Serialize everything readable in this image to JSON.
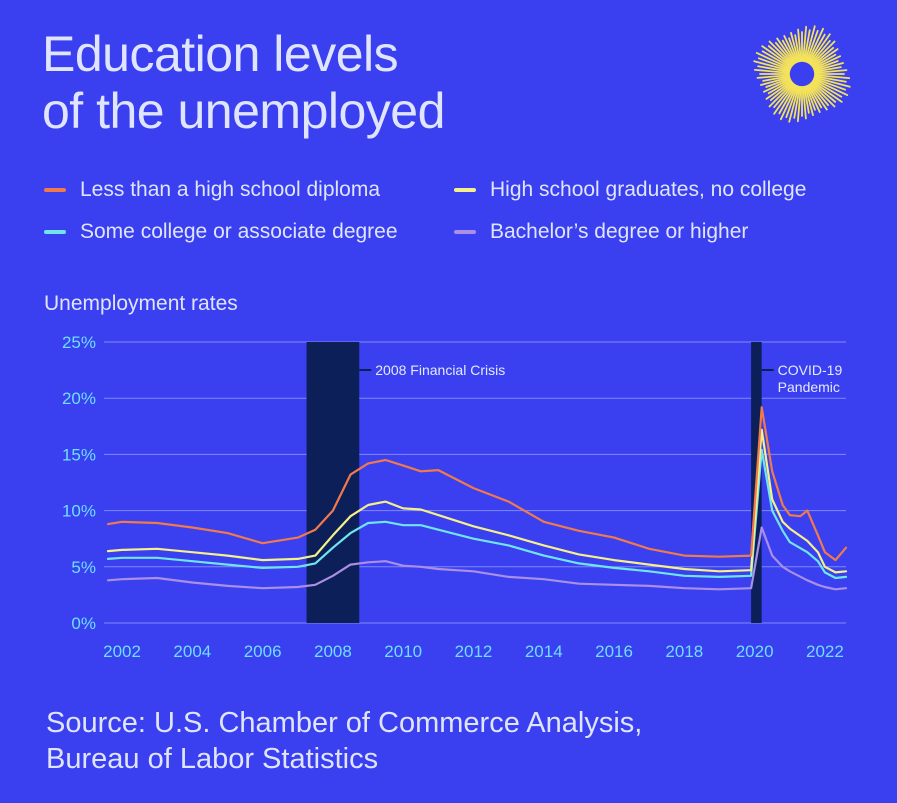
{
  "title_lines": [
    "Education levels",
    "of the unemployed"
  ],
  "legend": [
    {
      "label": "Less than a high school diploma",
      "color": "#f07a4b"
    },
    {
      "label": "High school graduates, no college",
      "color": "#f4f08a"
    },
    {
      "label": "Some college or associate degree",
      "color": "#6fe6ef"
    },
    {
      "label": "Bachelor’s degree or higher",
      "color": "#a98fe6"
    }
  ],
  "y_title": "Unemployment rates",
  "source_lines": [
    "Source: U.S. Chamber of Commerce Analysis,",
    "Bureau of Labor Statistics"
  ],
  "logo_icon": "sunburst-logo-icon",
  "chart_data": {
    "type": "line",
    "ylabel": "Unemployment rates",
    "ylim": [
      0,
      25
    ],
    "yticks": [
      0,
      5,
      10,
      15,
      20,
      25
    ],
    "ytick_labels": [
      "0%",
      "5%",
      "10%",
      "15%",
      "20%",
      "25%"
    ],
    "xlim": [
      2001.6,
      2022.6
    ],
    "xticks": [
      2002,
      2004,
      2006,
      2008,
      2010,
      2012,
      2014,
      2016,
      2018,
      2020,
      2022
    ],
    "xtick_labels": [
      "2002",
      "2004",
      "2006",
      "2008",
      "2010",
      "2012",
      "2014",
      "2016",
      "2018",
      "2020",
      "2022"
    ],
    "grid": "horizontal",
    "annotations": [
      {
        "label_lines": [
          "2008 Financial Crisis"
        ],
        "x_start": 2007.25,
        "x_end": 2008.75
      },
      {
        "label_lines": [
          "COVID-19",
          "Pandemic"
        ],
        "x_start": 2019.9,
        "x_end": 2020.2
      }
    ],
    "series": [
      {
        "name": "Less than a high school diploma",
        "color": "#f07a4b",
        "points": [
          [
            2001.6,
            8.8
          ],
          [
            2002,
            9.0
          ],
          [
            2003,
            8.9
          ],
          [
            2004,
            8.5
          ],
          [
            2005,
            8.0
          ],
          [
            2006,
            7.1
          ],
          [
            2007,
            7.6
          ],
          [
            2007.5,
            8.3
          ],
          [
            2008,
            10.0
          ],
          [
            2008.5,
            13.2
          ],
          [
            2009,
            14.2
          ],
          [
            2009.5,
            14.5
          ],
          [
            2010,
            14.0
          ],
          [
            2010.5,
            13.5
          ],
          [
            2011,
            13.6
          ],
          [
            2012,
            12.0
          ],
          [
            2013,
            10.8
          ],
          [
            2014,
            9.0
          ],
          [
            2015,
            8.2
          ],
          [
            2016,
            7.6
          ],
          [
            2017,
            6.6
          ],
          [
            2018,
            6.0
          ],
          [
            2019,
            5.9
          ],
          [
            2019.9,
            6.0
          ],
          [
            2020.2,
            19.2
          ],
          [
            2020.5,
            13.5
          ],
          [
            2020.8,
            10.5
          ],
          [
            2021,
            9.6
          ],
          [
            2021.3,
            9.5
          ],
          [
            2021.5,
            10.0
          ],
          [
            2021.8,
            7.8
          ],
          [
            2022,
            6.3
          ],
          [
            2022.3,
            5.6
          ],
          [
            2022.6,
            6.7
          ]
        ]
      },
      {
        "name": "High school graduates, no college",
        "color": "#f4f08a",
        "points": [
          [
            2001.6,
            6.4
          ],
          [
            2002,
            6.5
          ],
          [
            2003,
            6.6
          ],
          [
            2004,
            6.3
          ],
          [
            2005,
            6.0
          ],
          [
            2006,
            5.6
          ],
          [
            2007,
            5.7
          ],
          [
            2007.5,
            6.0
          ],
          [
            2008,
            7.8
          ],
          [
            2008.5,
            9.5
          ],
          [
            2009,
            10.5
          ],
          [
            2009.5,
            10.8
          ],
          [
            2010,
            10.2
          ],
          [
            2010.5,
            10.1
          ],
          [
            2011,
            9.6
          ],
          [
            2012,
            8.6
          ],
          [
            2013,
            7.8
          ],
          [
            2014,
            6.9
          ],
          [
            2015,
            6.1
          ],
          [
            2016,
            5.6
          ],
          [
            2017,
            5.2
          ],
          [
            2018,
            4.8
          ],
          [
            2019,
            4.6
          ],
          [
            2019.9,
            4.7
          ],
          [
            2020.2,
            17.2
          ],
          [
            2020.5,
            11.0
          ],
          [
            2020.8,
            9.0
          ],
          [
            2021,
            8.4
          ],
          [
            2021.5,
            7.3
          ],
          [
            2021.8,
            6.3
          ],
          [
            2022,
            5.0
          ],
          [
            2022.3,
            4.5
          ],
          [
            2022.6,
            4.6
          ]
        ]
      },
      {
        "name": "Some college or associate degree",
        "color": "#6fe6ef",
        "points": [
          [
            2001.6,
            5.7
          ],
          [
            2002,
            5.8
          ],
          [
            2003,
            5.8
          ],
          [
            2004,
            5.5
          ],
          [
            2005,
            5.2
          ],
          [
            2006,
            4.9
          ],
          [
            2007,
            5.0
          ],
          [
            2007.5,
            5.3
          ],
          [
            2008,
            6.7
          ],
          [
            2008.5,
            8.0
          ],
          [
            2009,
            8.9
          ],
          [
            2009.5,
            9.0
          ],
          [
            2010,
            8.7
          ],
          [
            2010.5,
            8.7
          ],
          [
            2011,
            8.3
          ],
          [
            2012,
            7.5
          ],
          [
            2013,
            6.9
          ],
          [
            2014,
            6.0
          ],
          [
            2015,
            5.3
          ],
          [
            2016,
            4.9
          ],
          [
            2017,
            4.6
          ],
          [
            2018,
            4.2
          ],
          [
            2019,
            4.1
          ],
          [
            2019.9,
            4.2
          ],
          [
            2020.2,
            15.4
          ],
          [
            2020.5,
            10.0
          ],
          [
            2020.8,
            8.2
          ],
          [
            2021,
            7.2
          ],
          [
            2021.5,
            6.3
          ],
          [
            2021.8,
            5.5
          ],
          [
            2022,
            4.5
          ],
          [
            2022.3,
            4.0
          ],
          [
            2022.6,
            4.1
          ]
        ]
      },
      {
        "name": "Bachelor’s degree or higher",
        "color": "#a98fe6",
        "points": [
          [
            2001.6,
            3.8
          ],
          [
            2002,
            3.9
          ],
          [
            2003,
            4.0
          ],
          [
            2004,
            3.6
          ],
          [
            2005,
            3.3
          ],
          [
            2006,
            3.1
          ],
          [
            2007,
            3.2
          ],
          [
            2007.5,
            3.4
          ],
          [
            2008,
            4.2
          ],
          [
            2008.5,
            5.2
          ],
          [
            2009,
            5.4
          ],
          [
            2009.5,
            5.5
          ],
          [
            2010,
            5.1
          ],
          [
            2010.5,
            5.0
          ],
          [
            2011,
            4.8
          ],
          [
            2012,
            4.6
          ],
          [
            2013,
            4.1
          ],
          [
            2014,
            3.9
          ],
          [
            2015,
            3.5
          ],
          [
            2016,
            3.4
          ],
          [
            2017,
            3.3
          ],
          [
            2018,
            3.1
          ],
          [
            2019,
            3.0
          ],
          [
            2019.9,
            3.1
          ],
          [
            2020.2,
            8.5
          ],
          [
            2020.5,
            6.0
          ],
          [
            2020.8,
            5.0
          ],
          [
            2021,
            4.6
          ],
          [
            2021.5,
            3.8
          ],
          [
            2021.8,
            3.4
          ],
          [
            2022,
            3.2
          ],
          [
            2022.3,
            3.0
          ],
          [
            2022.6,
            3.1
          ]
        ]
      }
    ]
  }
}
